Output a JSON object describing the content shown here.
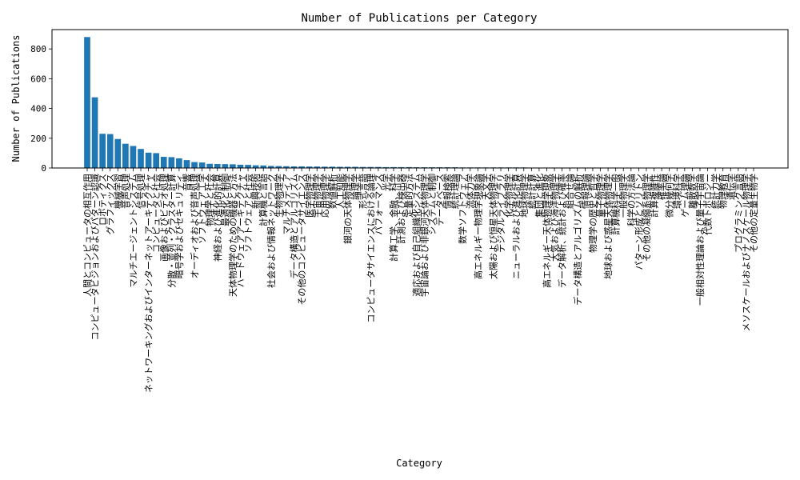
{
  "chart_data": {
    "type": "bar",
    "title": "Number of Publications per Category",
    "xlabel": "Category",
    "ylabel": "Number of Publications",
    "ylim": [
      0,
      930
    ],
    "yticks": [
      0,
      200,
      400,
      600,
      800
    ],
    "grid": false,
    "bar_color": "#1f77b4",
    "categories": [
      "人間とコンピュータの相互作用",
      "コンピュータビジョンおよびパターン認識",
      "ロボティクス",
      "グラフィックス",
      "機械学習",
      "音声処理",
      "マルチエージェントシステム",
      "信号処理",
      "ネットワーキングおよびインターネットアーキテクチャ",
      "コンピュータと社会",
      "画像およびビデオ処理",
      "分散・並列・クラスター計算",
      "暗号学およびセキュリティ",
      "音響",
      "オーディオおよび音声処理",
      "ソフトウェア工学",
      "物理学と社会",
      "神経および進化的計算",
      "最適化と制御",
      "天体物理学のための機器と方法",
      "ハードウェアアーキテクチャ",
      "ソフトウェアと社会",
      "新興技術",
      "計算機と言語",
      "社会および情報ネットワーク",
      "生物物理学",
      "マルチメディア",
      "データ構造とアルゴリズム",
      "その他のコンピュータサイエンス",
      "医学物理学",
      "宇宙物理学",
      "応用物理学",
      "数値解析",
      "人工知能",
      "銀河の天体物理学",
      "論理学",
      "形式言語",
      "コンピュータサイエンスにおける論理",
      "パフォーマンス",
      "光学",
      "計算工学、金融、科学",
      "計測および検出器",
      "定量的方法",
      "適応および自己組織化システム",
      "宇宙論および非銀河天体物理学",
      "システムと制御",
      "データベース",
      "情報検索",
      "統計理論",
      "数学ソフトウェア",
      "流体力学",
      "高エネルギー物理学現象論",
      "天文学",
      "太陽および恒星天体物理学",
      "デジタルライブラリ",
      "化学物理学",
      "ニューラルおよび進化計算",
      "地球物理学",
      "統計計算",
      "集団と進化",
      "高エネルギー天体物理学現象",
      "大気および海洋物理学",
      "データ解析、統計および確率",
      "組合せ論",
      "データ構造とアルゴリズムの解析",
      "情報理論",
      "物理学の歴史と哲学",
      "量子物理学",
      "地球および惑星天体物理学",
      "計算機科学一般",
      "一般物理学",
      "科学の方法論",
      "パターン形成とソリトン",
      "その他の凝縮系物理学",
      "計算複雑性",
      "確率論",
      "微分幾何学",
      "環境科学",
      "ゲーム理論",
      "離散数学",
      "一般相対性理論および量子宇宙論",
      "代数トポロジー",
      "統計力学",
      "物理教育",
      "遺伝学",
      "プログラミング言語",
      "メソスケールおよびナノスケール物理学",
      "その他の定量生物学"
    ],
    "values": [
      880,
      475,
      230,
      228,
      195,
      163,
      148,
      128,
      103,
      100,
      75,
      73,
      65,
      53,
      40,
      37,
      28,
      27,
      26,
      25,
      22,
      21,
      18,
      17,
      14,
      13,
      12,
      11,
      11,
      10,
      10,
      9,
      9,
      8,
      8,
      8,
      7,
      7,
      7,
      6,
      6,
      6,
      6,
      5,
      5,
      5,
      5,
      5,
      5,
      4,
      4,
      4,
      4,
      4,
      4,
      4,
      4,
      4,
      3,
      3,
      3,
      3,
      3,
      3,
      3,
      3,
      3,
      3,
      3,
      3,
      2,
      2,
      2,
      2,
      2,
      2,
      2,
      2,
      1,
      1,
      1,
      1,
      1,
      1,
      1,
      1,
      1,
      1
    ]
  }
}
